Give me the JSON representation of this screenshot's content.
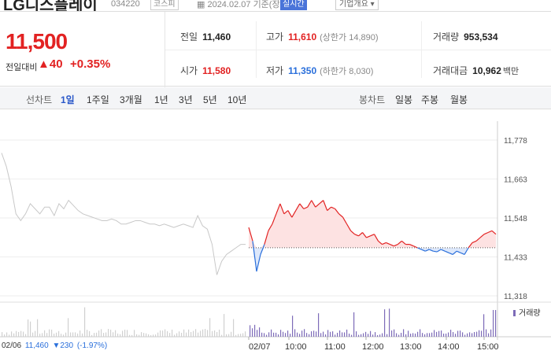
{
  "header": {
    "stock_name": "LG디스플레이",
    "stock_code": "034220",
    "market": "코스피",
    "date_text": "2024.02.07 기준(장마감)",
    "status": "실시간",
    "info_dropdown": "기업개요"
  },
  "price": {
    "current": "11,500",
    "change_label": "전일대비",
    "change_abs": "40",
    "change_pct": "+0.35%"
  },
  "stats": {
    "prev_close_label": "전일",
    "prev_close": "11,460",
    "high_label": "고가",
    "high": "11,610",
    "upper_limit_label": "(상한가 14,890)",
    "volume_label": "거래량",
    "volume": "953,534",
    "open_label": "시가",
    "open": "11,580",
    "low_label": "저가",
    "low": "11,350",
    "lower_limit_label": "(하한가 8,030)",
    "amount_label": "거래대금",
    "amount": "10,962",
    "amount_unit": "백만"
  },
  "toolbar": {
    "line_chart_label": "선차트",
    "periods": [
      "1일",
      "1주일",
      "3개월",
      "1년",
      "3년",
      "5년",
      "10년"
    ],
    "active_period": "1일",
    "candle_label": "봉차트",
    "candles": [
      "일봉",
      "주봉",
      "월봉"
    ]
  },
  "chart_data": {
    "type": "line",
    "y_ticks": [
      "11,778",
      "11,663",
      "11,548",
      "11,433",
      "11,318"
    ],
    "ylim": [
      11318,
      11778
    ],
    "baseline": 11460,
    "x_ticks": [
      "02/06",
      "02/07",
      "10:00",
      "11:00",
      "12:00",
      "13:00",
      "14:00",
      "15:00"
    ],
    "volume_label": "거래량",
    "prev_day": [
      11740,
      11700,
      11640,
      11560,
      11540,
      11560,
      11590,
      11575,
      11560,
      11580,
      11580,
      11555,
      11590,
      11575,
      11600,
      11585,
      11570,
      11560,
      11555,
      11550,
      11545,
      11540,
      11540,
      11545,
      11540,
      11530,
      11530,
      11535,
      11540,
      11540,
      11535,
      11530,
      11530,
      11525,
      11530,
      11525,
      11520,
      11525,
      11530,
      11525,
      11520,
      11555,
      11525,
      11515,
      11470,
      11380,
      11420,
      11440,
      11450,
      11460,
      11470,
      11470
    ],
    "today": [
      11520,
      11480,
      11390,
      11440,
      11470,
      11510,
      11530,
      11560,
      11590,
      11560,
      11570,
      11550,
      11570,
      11590,
      11575,
      11580,
      11600,
      11580,
      11590,
      11600,
      11570,
      11580,
      11575,
      11560,
      11550,
      11530,
      11510,
      11500,
      11495,
      11505,
      11490,
      11495,
      11500,
      11480,
      11470,
      11475,
      11470,
      11465,
      11470,
      11480,
      11470,
      11470,
      11465,
      11460,
      11455,
      11450,
      11455,
      11450,
      11448,
      11455,
      11450,
      11445,
      11440,
      11450,
      11445,
      11440,
      11460,
      11475,
      11480,
      11490,
      11500,
      11505,
      11510,
      11500
    ]
  },
  "footer": {
    "prev_date": "02/06",
    "prev_value": "11,460",
    "prev_change": "▼230",
    "prev_pct": "(-1.97%)"
  }
}
